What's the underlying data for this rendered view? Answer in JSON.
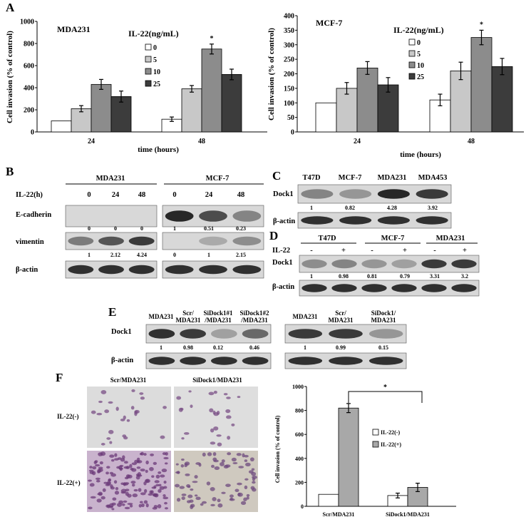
{
  "panels": {
    "A": {
      "label": "A",
      "charts": [
        {
          "title": "MDA231",
          "legend_title": "IL-22(ng/mL)",
          "legend": [
            "0",
            "5",
            "10",
            "25"
          ],
          "ylabel": "Cell invasion (% of control)",
          "xlabel": "time (hours)",
          "yticks": [
            "0",
            "200",
            "400",
            "600",
            "800",
            "1000"
          ],
          "star": "*"
        },
        {
          "title": "MCF-7",
          "legend_title": "IL-22(ng/mL)",
          "legend": [
            "0",
            "5",
            "10",
            "25"
          ],
          "ylabel": "Cell invasion (% of control)",
          "xlabel": "time (hours)",
          "yticks": [
            "0",
            "50",
            "100",
            "150",
            "200",
            "250",
            "300",
            "350",
            "400"
          ],
          "star": "*"
        }
      ]
    },
    "B": {
      "label": "B",
      "cell_lines": [
        "MDA231",
        "MCF-7"
      ],
      "row_header": "IL-22(h)",
      "timepoints": [
        "0",
        "24",
        "48",
        "0",
        "24",
        "48"
      ],
      "rows": [
        "E-cadherin",
        "vimentin",
        "β-actin"
      ],
      "ecad_quant": [
        "0",
        "0",
        "0",
        "1",
        "0.51",
        "0.23"
      ],
      "vim_quant": [
        "1",
        "2.12",
        "4.24",
        "0",
        "1",
        "2.15"
      ]
    },
    "C": {
      "label": "C",
      "cell_lines": [
        "T47D",
        "MCF-7",
        "MDA231",
        "MDA453"
      ],
      "rows": [
        "Dock1",
        "β-actin"
      ],
      "quant": [
        "1",
        "0.82",
        "4.28",
        "3.92"
      ]
    },
    "D": {
      "label": "D",
      "cell_lines": [
        "T47D",
        "MCF-7",
        "MDA231"
      ],
      "treat_label": "IL-22",
      "signs": [
        "-",
        "+",
        "-",
        "+",
        "-",
        "+"
      ],
      "rows": [
        "Dock1",
        "β-actin"
      ],
      "quant": [
        "1",
        "0.98",
        "0.81",
        "0.79",
        "3.31",
        "3.2"
      ]
    },
    "E": {
      "label": "E",
      "lanes_left": [
        "MDA231",
        "Scr/ MDA231",
        "SiDock1#1 /MDA231",
        "SiDock1#2 /MDA231"
      ],
      "lanes_right": [
        "MDA231",
        "Scr/ MDA231",
        "SiDock1/ MDA231"
      ],
      "rows": [
        "Dock1",
        "β-actin"
      ],
      "quant_left": [
        "1",
        "0.98",
        "0.12",
        "0.46"
      ],
      "quant_right": [
        "1",
        "0.99",
        "0.15"
      ]
    },
    "F": {
      "label": "F",
      "col_titles": [
        "Scr/MDA231",
        "SiDock1/MDA231"
      ],
      "row_titles": [
        "IL-22(-)",
        "IL-22(+)"
      ],
      "star": "*"
    }
  },
  "chart_data": [
    {
      "type": "bar",
      "title": "MDA231",
      "categories": [
        "24",
        "48"
      ],
      "xlabel": "time (hours)",
      "ylabel": "Cell invasion (% of control)",
      "ylim": [
        0,
        1000
      ],
      "legend_title": "IL-22(ng/mL)",
      "colors": [
        "#ffffff",
        "#c8c8c8",
        "#8c8c8c",
        "#3c3c3c"
      ],
      "series": [
        {
          "name": "0",
          "values": [
            100,
            115
          ],
          "errors": [
            0,
            20
          ]
        },
        {
          "name": "5",
          "values": [
            210,
            390
          ],
          "errors": [
            28,
            30
          ]
        },
        {
          "name": "10",
          "values": [
            430,
            750
          ],
          "errors": [
            45,
            45
          ]
        },
        {
          "name": "25",
          "values": [
            320,
            520
          ],
          "errors": [
            50,
            48
          ]
        }
      ]
    },
    {
      "type": "bar",
      "title": "MCF-7",
      "categories": [
        "24",
        "48"
      ],
      "xlabel": "time (hours)",
      "ylabel": "Cell invasion (% of control)",
      "ylim": [
        0,
        400
      ],
      "legend_title": "IL-22(ng/mL)",
      "colors": [
        "#ffffff",
        "#c8c8c8",
        "#8c8c8c",
        "#3c3c3c"
      ],
      "series": [
        {
          "name": "0",
          "values": [
            100,
            110
          ],
          "errors": [
            0,
            20
          ]
        },
        {
          "name": "5",
          "values": [
            150,
            210
          ],
          "errors": [
            20,
            30
          ]
        },
        {
          "name": "10",
          "values": [
            220,
            325
          ],
          "errors": [
            22,
            25
          ]
        },
        {
          "name": "25",
          "values": [
            162,
            225
          ],
          "errors": [
            25,
            28
          ]
        }
      ]
    },
    {
      "type": "bar",
      "categories": [
        "Scr/MDA231",
        "SiDock1/MDA231"
      ],
      "ylabel": "Cell invasion (% of control)",
      "ylim": [
        0,
        1000
      ],
      "colors": [
        "#ffffff",
        "#a8a8a8"
      ],
      "series": [
        {
          "name": "IL-22(-)",
          "values": [
            100,
            90
          ],
          "errors": [
            0,
            20
          ]
        },
        {
          "name": "IL-22(+)",
          "values": [
            820,
            158
          ],
          "errors": [
            38,
            35
          ]
        }
      ],
      "annotation": "*"
    }
  ]
}
